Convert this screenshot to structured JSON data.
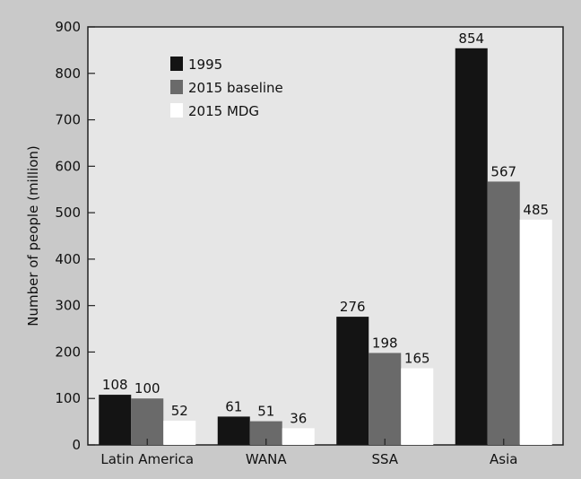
{
  "chart_data": {
    "type": "bar",
    "title": "",
    "xlabel": "",
    "ylabel": "Number of people (million)",
    "ylim": [
      0,
      900
    ],
    "yticks": [
      0,
      100,
      200,
      300,
      400,
      500,
      600,
      700,
      800,
      900
    ],
    "categories": [
      "Latin America",
      "WANA",
      "SSA",
      "Asia"
    ],
    "series": [
      {
        "name": "1995",
        "color": "#141414",
        "values": [
          108,
          61,
          276,
          854
        ]
      },
      {
        "name": "2015 baseline",
        "color": "#6a6a6a",
        "values": [
          100,
          51,
          198,
          567
        ]
      },
      {
        "name": "2015 MDG",
        "color": "#ffffff",
        "values": [
          52,
          36,
          165,
          485
        ]
      }
    ],
    "legend_position": "top-left",
    "grid": false,
    "background": "#c9c9c9",
    "plot_background": "#e6e6e6"
  }
}
